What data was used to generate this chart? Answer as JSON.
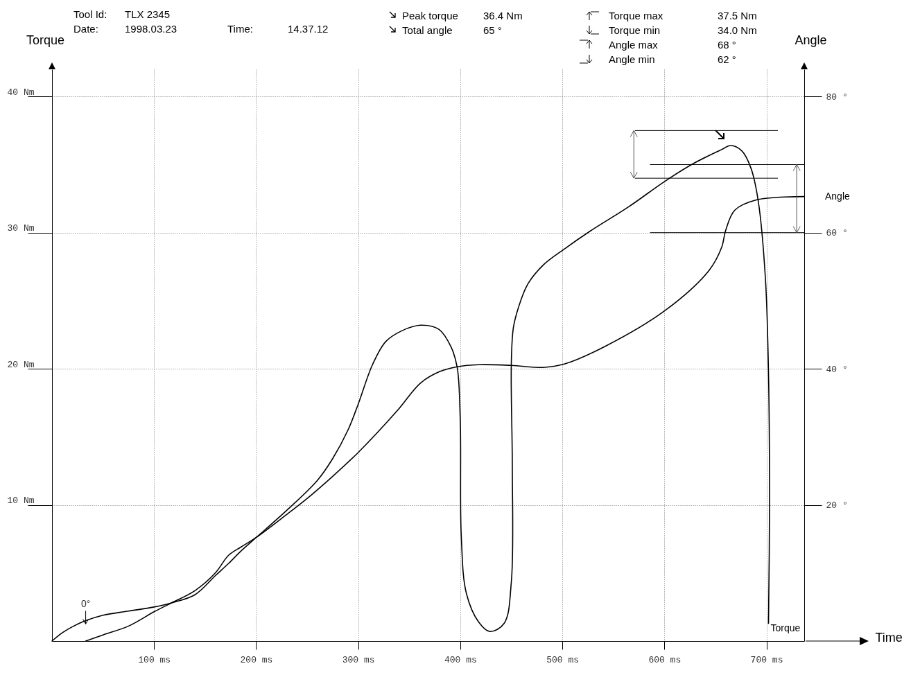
{
  "chart_data": {
    "type": "line",
    "xlabel": "Time",
    "ylabel": "Torque",
    "y2label": "Angle",
    "xlim": [
      0,
      737
    ],
    "xticks": [
      {
        "value": 100,
        "label": "100 ms"
      },
      {
        "value": 200,
        "label": "200 ms"
      },
      {
        "value": 300,
        "label": "300 ms"
      },
      {
        "value": 400,
        "label": "400 ms"
      },
      {
        "value": 500,
        "label": "500 ms"
      },
      {
        "value": 600,
        "label": "600 ms"
      },
      {
        "value": 700,
        "label": "700 ms"
      }
    ],
    "ylim": [
      0,
      42
    ],
    "yticks": [
      {
        "value": 10,
        "label": "10 Nm"
      },
      {
        "value": 20,
        "label": "20 Nm"
      },
      {
        "value": 30,
        "label": "30 Nm"
      },
      {
        "value": 40,
        "label": "40 Nm"
      }
    ],
    "y2lim": [
      0,
      84
    ],
    "y2ticks": [
      {
        "value": 20,
        "label": "20 °"
      },
      {
        "value": 40,
        "label": "40 °"
      },
      {
        "value": 60,
        "label": "60 °"
      },
      {
        "value": 80,
        "label": "80 °"
      }
    ],
    "grid": true,
    "line_style": "solid",
    "series": [
      {
        "name": "Torque",
        "color": "#000000",
        "x": [
          0,
          10,
          20,
          33,
          50,
          75,
          100,
          117,
          140,
          160,
          173,
          185,
          200,
          230,
          260,
          275,
          290,
          300,
          314,
          327,
          343,
          361,
          379,
          391,
          397,
          400,
          401,
          406,
          418,
          429,
          443,
          450,
          451,
          450,
          452,
          457,
          466,
          481,
          502,
          527,
          565,
          601,
          629,
          656,
          665,
          676,
          685,
          692,
          699,
          702,
          703,
          702
        ],
        "values": [
          0,
          0.6,
          1.05,
          1.5,
          1.9,
          2.2,
          2.5,
          2.8,
          3.4,
          4.8,
          5.7,
          6.6,
          7.6,
          9.6,
          11.8,
          13.4,
          15.5,
          17.4,
          20.3,
          22.0,
          22.8,
          23.2,
          22.9,
          21.6,
          20.1,
          16.2,
          7.7,
          3.5,
          1.4,
          0.7,
          1.3,
          4.3,
          12.8,
          20.3,
          23.0,
          24.5,
          26.2,
          27.6,
          28.8,
          30.1,
          31.9,
          33.8,
          35.1,
          36.1,
          36.4,
          36.0,
          34.7,
          32.3,
          26.6,
          19.7,
          10.0,
          1.3
        ]
      },
      {
        "name": "Angle",
        "color": "#000000",
        "axis": "y2",
        "x": [
          33,
          50,
          75,
          100,
          117,
          140,
          160,
          173,
          185,
          200,
          230,
          248,
          275,
          300,
          338,
          361,
          380,
          397,
          418,
          450,
          481,
          502,
          542,
          601,
          644,
          656,
          660,
          669,
          690,
          737
        ],
        "values": [
          0,
          0.9,
          2.2,
          4.3,
          5.6,
          7.4,
          10.0,
          12.6,
          13.8,
          15.2,
          18.6,
          20.7,
          24.2,
          27.7,
          33.8,
          37.9,
          39.6,
          40.3,
          40.6,
          40.5,
          40.2,
          40.7,
          43.3,
          48.6,
          54.5,
          57.8,
          60.3,
          63.3,
          64.8,
          65.3
        ]
      }
    ],
    "ref_lines": [
      {
        "axis": "y",
        "value": 37.5
      },
      {
        "axis": "y",
        "value": 34.0
      },
      {
        "axis": "y2",
        "value": 70
      },
      {
        "axis": "y2",
        "value": 60
      }
    ],
    "annotations": [
      "Tool Id:",
      "TLX 2345",
      "Date:",
      "1998.03.23",
      "Time:",
      "14.37.12",
      "Peak torque",
      "36.4 Nm",
      "Total angle",
      "65 °",
      "Torque max",
      "37.5 Nm",
      "Torque min",
      "34.0 Nm",
      "Angle max",
      "68 °",
      "Angle min",
      "62 °",
      {
        "text": "0°",
        "x": 33,
        "y": 1.2
      }
    ]
  }
}
